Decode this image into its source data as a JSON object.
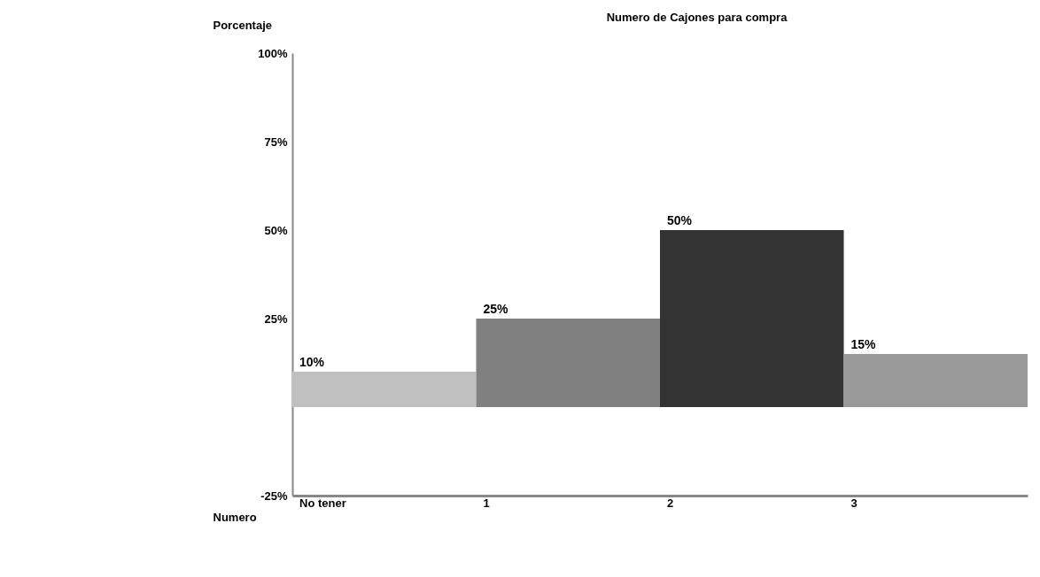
{
  "chart_data": {
    "type": "bar",
    "title": "Numero de Cajones para compra",
    "xlabel": "Numero",
    "ylabel": "Porcentaje",
    "categories": [
      "No tener",
      "1",
      "2",
      "3"
    ],
    "values": [
      10,
      25,
      50,
      15
    ],
    "colors": [
      "#c0c0c0",
      "#808080",
      "#333333",
      "#999999"
    ],
    "value_labels": [
      "10%",
      "25%",
      "50%",
      "15%"
    ],
    "ylim": [
      -25,
      100
    ],
    "yticks": [
      {
        "value": 100,
        "label": "100%"
      },
      {
        "value": 75,
        "label": "75%"
      },
      {
        "value": 50,
        "label": "50%"
      },
      {
        "value": 25,
        "label": "25%"
      },
      {
        "value": -25,
        "label": "-25%"
      }
    ],
    "grid": false
  }
}
